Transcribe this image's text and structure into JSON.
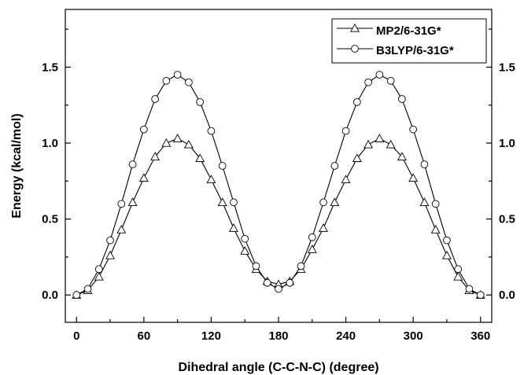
{
  "chart_data": {
    "type": "line",
    "title": "",
    "xlabel": "Dihedral angle (C-C-N-C) (degree)",
    "ylabel": "Energy (kcal/mol)",
    "xlim": [
      -10,
      370
    ],
    "ylim": [
      -0.18,
      1.88
    ],
    "x_ticks": [
      "0",
      "60",
      "120",
      "180",
      "240",
      "300",
      "360"
    ],
    "y_ticks": [
      "0.0",
      "0.5",
      "1.0",
      "1.5"
    ],
    "right_axis_ticks": true,
    "grid": false,
    "legend_position": "top-right",
    "x": [
      0,
      10,
      20,
      30,
      40,
      50,
      60,
      70,
      80,
      90,
      100,
      110,
      120,
      130,
      140,
      150,
      160,
      170,
      180,
      190,
      200,
      210,
      220,
      230,
      240,
      250,
      260,
      270,
      280,
      290,
      300,
      310,
      320,
      330,
      340,
      350,
      360
    ],
    "series": [
      {
        "name": "MP2/6-31G*",
        "marker": "triangle",
        "values": [
          0.0,
          0.03,
          0.12,
          0.26,
          0.43,
          0.61,
          0.77,
          0.91,
          1.0,
          1.03,
          0.99,
          0.9,
          0.76,
          0.61,
          0.44,
          0.29,
          0.17,
          0.09,
          0.07,
          0.09,
          0.17,
          0.3,
          0.44,
          0.61,
          0.76,
          0.9,
          0.99,
          1.03,
          0.99,
          0.91,
          0.77,
          0.61,
          0.43,
          0.26,
          0.12,
          0.03,
          0.0
        ]
      },
      {
        "name": "B3LYP/6-31G*",
        "marker": "circle",
        "values": [
          0.0,
          0.04,
          0.17,
          0.36,
          0.6,
          0.86,
          1.09,
          1.29,
          1.41,
          1.45,
          1.4,
          1.27,
          1.08,
          0.85,
          0.61,
          0.37,
          0.19,
          0.08,
          0.04,
          0.08,
          0.19,
          0.38,
          0.61,
          0.85,
          1.08,
          1.27,
          1.4,
          1.45,
          1.41,
          1.29,
          1.09,
          0.86,
          0.6,
          0.36,
          0.17,
          0.04,
          0.0
        ]
      }
    ]
  }
}
